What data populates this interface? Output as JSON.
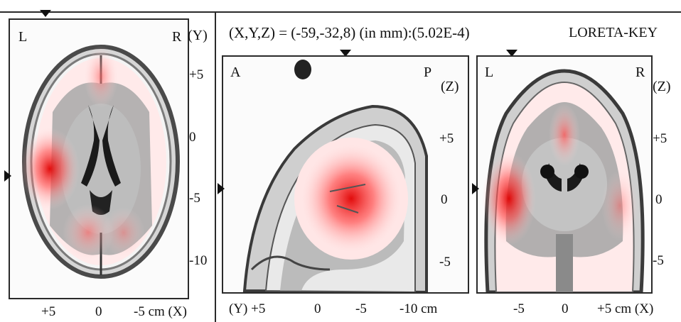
{
  "header": {
    "coordinate_readout": "(X,Y,Z) = (-59,-32,8) (in mm):(5.02E-4)",
    "brand": "LORETA-KEY"
  },
  "axial": {
    "left_label": "L",
    "right_label": "R",
    "axis_unit_label": "(Y)",
    "side_ticks": [
      "+5",
      "0",
      "-5",
      "-10"
    ],
    "bottom_ticks": [
      "+5",
      "0",
      "-5 cm (X)"
    ]
  },
  "sagittal": {
    "left_label": "A",
    "right_label": "P",
    "axis_unit_label": "(Z)",
    "side_ticks": [
      "+5",
      "0",
      "-5"
    ],
    "bottom_ticks": [
      "(Y) +5",
      "0",
      "-5",
      "-10 cm"
    ]
  },
  "coronal": {
    "left_label": "L",
    "right_label": "R",
    "axis_unit_label": "(Z)",
    "side_ticks": [
      "+5",
      "0",
      "-5"
    ],
    "bottom_ticks": [
      "-5",
      "0",
      "+5 cm (X)"
    ]
  },
  "colors": {
    "activation": "#ff3030",
    "brain_gray": "#9a9a9a",
    "frame": "#2a2a2a"
  }
}
